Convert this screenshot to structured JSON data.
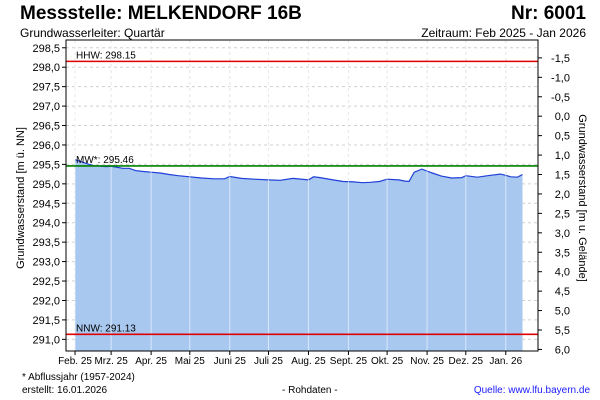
{
  "header": {
    "title": "Messstelle: MELKENDORF 16B",
    "number": "Nr: 6001",
    "aquifer": "Grundwasserleiter: Quartär",
    "period": "Zeitraum: Feb 2025 - Jan 2026"
  },
  "footer": {
    "footnote": "* Abflussjahr (1957-2024)",
    "created": "erstellt:  16.01.2026",
    "raw": "- Rohdaten -",
    "source": "Quelle:  www.lfu.bayern.de"
  },
  "colors": {
    "fill": "#a8c8f0",
    "line": "#1f3fd8",
    "extreme": "#e00000",
    "mean": "#008000",
    "grid": "#d0d0d0"
  },
  "chart_data": {
    "type": "area",
    "y_left_label": "Grundwasserstand [m ü. NN]",
    "y_right_label": "Grundwasserstand [m u. Gelände]",
    "y_left_ticks": [
      "298,5",
      "298,0",
      "297,5",
      "297,0",
      "296,5",
      "296,0",
      "295,5",
      "295,0",
      "294,5",
      "294,0",
      "293,5",
      "293,0",
      "292,5",
      "292,0",
      "291,5",
      "291,0"
    ],
    "y_left_tick_values": [
      298.5,
      298.0,
      297.5,
      297.0,
      296.5,
      296.0,
      295.5,
      295.0,
      294.5,
      294.0,
      293.5,
      293.0,
      292.5,
      292.0,
      291.5,
      291.0
    ],
    "y_right_ticks": [
      "-1,5",
      "-1,0",
      "-0,5",
      "0,0",
      "0,5",
      "1,0",
      "1,5",
      "2,0",
      "2,5",
      "3,0",
      "3,5",
      "4,0",
      "4,5",
      "5,0",
      "5,5",
      "6,0"
    ],
    "y_right_tick_values": [
      -1.5,
      -1.0,
      -0.5,
      0.0,
      0.5,
      1.0,
      1.5,
      2.0,
      2.5,
      3.0,
      3.5,
      4.0,
      4.5,
      5.0,
      5.5,
      6.0
    ],
    "ylim": [
      290.7,
      298.7
    ],
    "right_ylim": [
      -1.96,
      6.04
    ],
    "x_ticks": [
      "Feb. 25",
      "Mrz. 25",
      "Apr. 25",
      "Mai 25",
      "Juni 25",
      "Juli 25",
      "Aug. 25",
      "Sept. 25",
      "Okt. 25",
      "Nov. 25",
      "Dez. 25",
      "Jan. 26"
    ],
    "x_tick_dates": [
      "2025-02-01",
      "2025-03-01",
      "2025-04-01",
      "2025-05-01",
      "2025-06-01",
      "2025-07-01",
      "2025-08-01",
      "2025-09-01",
      "2025-10-01",
      "2025-11-01",
      "2025-12-01",
      "2026-01-01"
    ],
    "xlim": [
      "2025-01-25",
      "2026-01-26"
    ],
    "reference_lines": [
      {
        "label": "HHW: 298.15",
        "value": 298.15,
        "kind": "extreme"
      },
      {
        "label": "MW*: 295.46",
        "value": 295.46,
        "kind": "mean"
      },
      {
        "label": "NNW: 291.13",
        "value": 291.13,
        "kind": "extreme"
      }
    ],
    "series": [
      {
        "x": [
          "2025-02-01",
          "2025-02-05",
          "2025-02-10",
          "2025-02-15",
          "2025-02-20",
          "2025-02-25",
          "2025-03-01",
          "2025-03-05",
          "2025-03-10",
          "2025-03-15",
          "2025-03-20",
          "2025-03-25",
          "2025-04-01",
          "2025-04-08",
          "2025-04-15",
          "2025-04-22",
          "2025-05-01",
          "2025-05-10",
          "2025-05-20",
          "2025-05-28",
          "2025-06-01",
          "2025-06-10",
          "2025-06-20",
          "2025-07-01",
          "2025-07-10",
          "2025-07-20",
          "2025-08-01",
          "2025-08-05",
          "2025-08-10",
          "2025-08-20",
          "2025-08-28",
          "2025-09-05",
          "2025-09-12",
          "2025-09-18",
          "2025-09-25",
          "2025-10-01",
          "2025-10-10",
          "2025-10-15",
          "2025-10-18",
          "2025-10-22",
          "2025-10-28",
          "2025-11-05",
          "2025-11-12",
          "2025-11-20",
          "2025-11-28",
          "2025-12-01",
          "2025-12-10",
          "2025-12-20",
          "2025-12-28",
          "2026-01-05",
          "2026-01-10",
          "2026-01-14"
        ],
        "y": [
          295.62,
          295.58,
          295.52,
          295.47,
          295.46,
          295.44,
          295.45,
          295.43,
          295.4,
          295.4,
          295.34,
          295.32,
          295.3,
          295.28,
          295.24,
          295.21,
          295.18,
          295.15,
          295.13,
          295.13,
          295.19,
          295.14,
          295.12,
          295.1,
          295.09,
          295.14,
          295.1,
          295.18,
          295.16,
          295.1,
          295.06,
          295.05,
          295.03,
          295.04,
          295.06,
          295.12,
          295.1,
          295.07,
          295.06,
          295.3,
          295.38,
          295.28,
          295.2,
          295.15,
          295.16,
          295.21,
          295.17,
          295.22,
          295.25,
          295.18,
          295.17,
          295.24
        ]
      }
    ],
    "grid": true
  }
}
